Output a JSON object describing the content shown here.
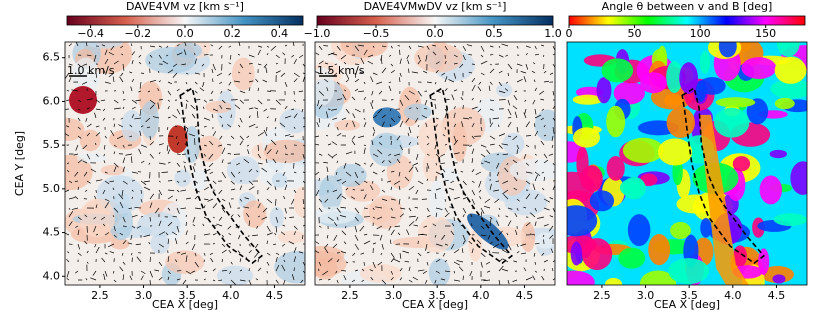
{
  "chart_data": [
    {
      "type": "vector-map",
      "colorbar_label": "DAVE4VM vz [km s⁻¹]",
      "colorbar_lim": [
        -0.5,
        0.5
      ],
      "colorbar_ticks": [
        {
          "value": -0.4,
          "label": "−0.4"
        },
        {
          "value": -0.2,
          "label": "−0.2"
        },
        {
          "value": 0,
          "label": "0.0"
        },
        0.2,
        0.4
      ],
      "colormap": [
        "#67001f",
        "#d6604d",
        "#f7f7f7",
        "#4393c3",
        "#053061"
      ],
      "arrow_scale_label": "1.0 km/s",
      "xlabel": "CEA X [deg]",
      "ylabel": "CEA Y [deg]",
      "xlim": [
        2.1,
        4.85
      ],
      "xticks": [
        2.5,
        {
          "value": 3,
          "label": "3.0"
        },
        3.5,
        {
          "value": 4,
          "label": "4.0"
        },
        4.5
      ],
      "ylim": [
        3.9,
        6.68
      ],
      "yticks": [
        {
          "value": 4,
          "label": "4.0"
        },
        4.5,
        {
          "value": 5,
          "label": "5.0"
        },
        5.5,
        {
          "value": 6,
          "label": "6.0"
        },
        6.5
      ]
    },
    {
      "type": "vector-map",
      "colorbar_label": "DAVE4VMwDV vz [km s⁻¹]",
      "colorbar_lim": [
        -1,
        1
      ],
      "colorbar_ticks": [
        {
          "value": -1,
          "label": "−1.0"
        },
        {
          "value": -0.5,
          "label": "−0.5"
        },
        {
          "value": 0,
          "label": "0.0"
        },
        0.5,
        {
          "value": 1,
          "label": "1.0"
        }
      ],
      "colormap": [
        "#67001f",
        "#d6604d",
        "#f7f7f7",
        "#4393c3",
        "#053061"
      ],
      "arrow_scale_label": "1.5 km/s",
      "xlabel": "CEA X [deg]",
      "xlim": [
        2.1,
        4.85
      ],
      "xticks": [
        2.5,
        {
          "value": 3,
          "label": "3.0"
        },
        3.5,
        {
          "value": 4,
          "label": "4.0"
        },
        4.5
      ],
      "ylim": [
        3.9,
        6.68
      ]
    },
    {
      "type": "angle-map",
      "colorbar_label": "Angle θ between v and B [deg]",
      "colorbar_lim": [
        0,
        180
      ],
      "colorbar_ticks": [
        0,
        50,
        100,
        150
      ],
      "colormap": [
        "#ff0000",
        "#ffff00",
        "#00ff00",
        "#00ffff",
        "#0000ff",
        "#ff00ff",
        "#ff0000"
      ],
      "xlabel": "CEA X [deg]",
      "xlim": [
        2.1,
        4.85
      ],
      "xticks": [
        2.5,
        {
          "value": 3,
          "label": "3.0"
        },
        3.5,
        {
          "value": 4,
          "label": "4.0"
        },
        4.5
      ],
      "ylim": [
        3.9,
        6.68
      ]
    }
  ]
}
